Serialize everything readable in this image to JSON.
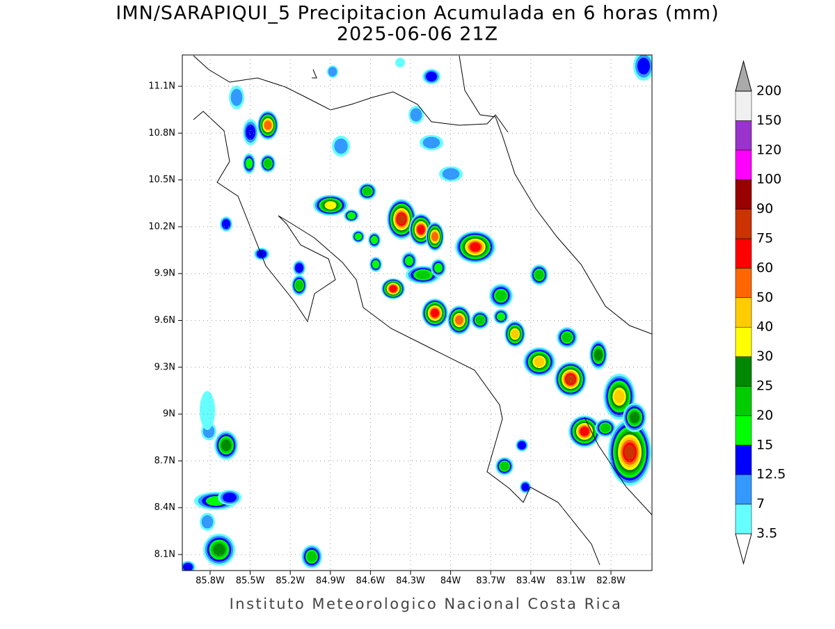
{
  "header": {
    "title": "IMN/SARAPIQUI_5 Precipitacion Acumulada en 6 horas (mm)",
    "subtitle": "2025-06-06 21Z"
  },
  "map": {
    "lat_labels": [
      "8.1N",
      "8.4N",
      "8.7N",
      "9N",
      "9.3N",
      "9.6N",
      "9.9N",
      "10.2N",
      "10.5N",
      "10.8N",
      "11.1N"
    ],
    "lon_labels": [
      "85.8W",
      "85.5W",
      "85.2W",
      "84.9W",
      "84.6W",
      "84.3W",
      "84W",
      "83.7W",
      "83.4W",
      "83.1W",
      "82.8W"
    ]
  },
  "colorbar": {
    "levels": [
      3.5,
      7,
      12.5,
      15,
      20,
      25,
      30,
      40,
      50,
      60,
      75,
      90,
      100,
      120,
      150,
      200
    ],
    "colors": [
      "#ffffff",
      "#66ffff",
      "#3399ff",
      "#0000ff",
      "#00ff00",
      "#00cc00",
      "#008800",
      "#ffff00",
      "#ffcc00",
      "#ff6600",
      "#ff0000",
      "#cc3300",
      "#990000",
      "#ff00ff",
      "#9933cc",
      "#f0f0f0",
      "#aaaaaa"
    ]
  },
  "footer": "Instituto Meteorologico Nacional Costa Rica"
}
